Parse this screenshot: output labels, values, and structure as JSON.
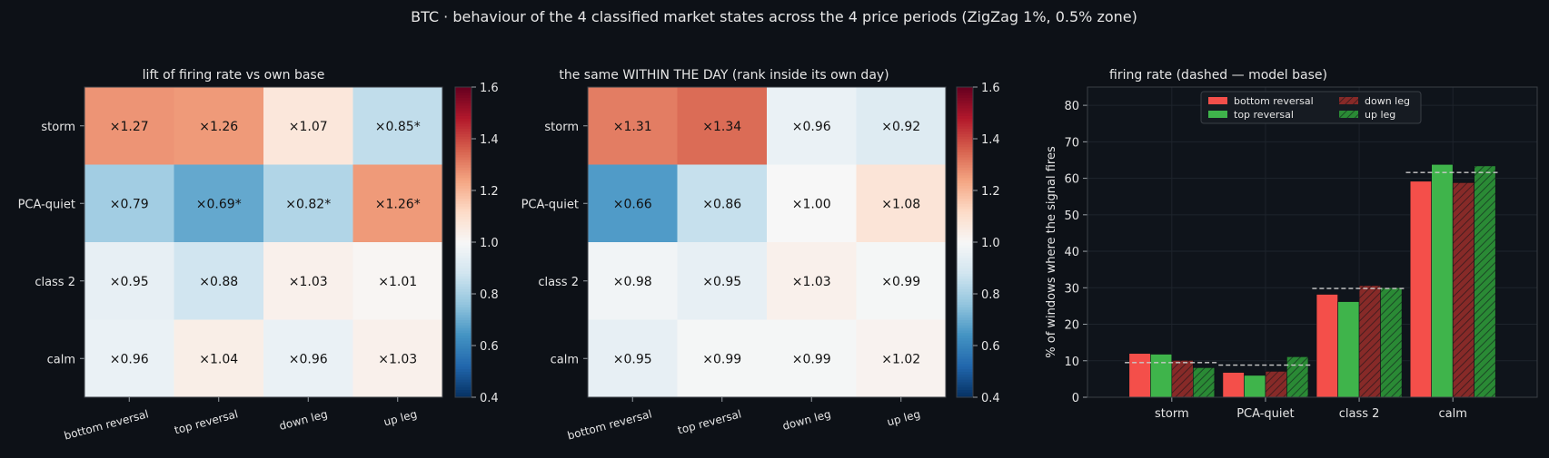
{
  "suptitle": "BTC · behaviour of the 4 classified market states across the 4 price periods (ZigZag 1%, 0.5% zone)",
  "colors": {
    "background": "#0d1117",
    "text": "#e6e6e6",
    "bottom_reversal": "#f44f4a",
    "top_reversal": "#3fb44b",
    "down_leg": "#872a28",
    "up_leg": "#2a8a35",
    "cmap": "RdBu_r"
  },
  "chart_data": [
    {
      "type": "heatmap",
      "title": "lift of firing rate vs own base",
      "rows": [
        "storm",
        "PCA-quiet",
        "class 2",
        "calm"
      ],
      "columns": [
        "bottom reversal",
        "top reversal",
        "down leg",
        "up leg"
      ],
      "values": [
        [
          1.27,
          1.26,
          1.07,
          0.85
        ],
        [
          0.79,
          0.69,
          0.82,
          1.26
        ],
        [
          0.95,
          0.88,
          1.03,
          1.01
        ],
        [
          0.96,
          1.04,
          0.96,
          1.03
        ]
      ],
      "labels": [
        [
          "×1.27",
          "×1.26",
          "×1.07",
          "×0.85*"
        ],
        [
          "×0.79",
          "×0.69*",
          "×0.82*",
          "×1.26*"
        ],
        [
          "×0.95",
          "×0.88",
          "×1.03",
          "×1.01"
        ],
        [
          "×0.96",
          "×1.04",
          "×0.96",
          "×1.03"
        ]
      ],
      "colorbar": {
        "min": 0.4,
        "max": 1.6,
        "ticks": [
          "0.4",
          "0.6",
          "0.8",
          "1.0",
          "1.2",
          "1.4",
          "1.6"
        ]
      }
    },
    {
      "type": "heatmap",
      "title": "the same WITHIN THE DAY (rank inside its own day)",
      "rows": [
        "storm",
        "PCA-quiet",
        "class 2",
        "calm"
      ],
      "columns": [
        "bottom reversal",
        "top reversal",
        "down leg",
        "up leg"
      ],
      "values": [
        [
          1.31,
          1.34,
          0.96,
          0.92
        ],
        [
          0.66,
          0.86,
          1.0,
          1.08
        ],
        [
          0.98,
          0.95,
          1.03,
          0.99
        ],
        [
          0.95,
          0.99,
          0.99,
          1.02
        ]
      ],
      "labels": [
        [
          "×1.31",
          "×1.34",
          "×0.96",
          "×0.92"
        ],
        [
          "×0.66",
          "×0.86",
          "×1.00",
          "×1.08"
        ],
        [
          "×0.98",
          "×0.95",
          "×1.03",
          "×0.99"
        ],
        [
          "×0.95",
          "×0.99",
          "×0.99",
          "×1.02"
        ]
      ],
      "colorbar": {
        "min": 0.4,
        "max": 1.6,
        "ticks": [
          "0.4",
          "0.6",
          "0.8",
          "1.0",
          "1.2",
          "1.4",
          "1.6"
        ]
      }
    },
    {
      "type": "bar",
      "title": "firing rate (dashed — model base)",
      "ylabel": "% of windows where the signal fires",
      "ylim": [
        0,
        85
      ],
      "yticks": [
        "0",
        "10",
        "20",
        "30",
        "40",
        "50",
        "60",
        "70",
        "80"
      ],
      "categories": [
        "storm",
        "PCA-quiet",
        "class 2",
        "calm"
      ],
      "series": [
        {
          "name": "bottom reversal",
          "values": [
            12.0,
            6.8,
            28.2,
            59.2
          ],
          "hatch": false
        },
        {
          "name": "top reversal",
          "values": [
            11.8,
            6.0,
            26.2,
            63.8
          ],
          "hatch": false
        },
        {
          "name": "down leg",
          "values": [
            10.1,
            7.1,
            30.6,
            58.8
          ],
          "hatch": true
        },
        {
          "name": "up leg",
          "values": [
            8.1,
            11.1,
            30.0,
            63.4
          ],
          "hatch": true
        }
      ],
      "base": [
        9.5,
        8.8,
        29.8,
        61.6
      ],
      "legend": "upper center, 2 columns",
      "grid": true
    }
  ]
}
